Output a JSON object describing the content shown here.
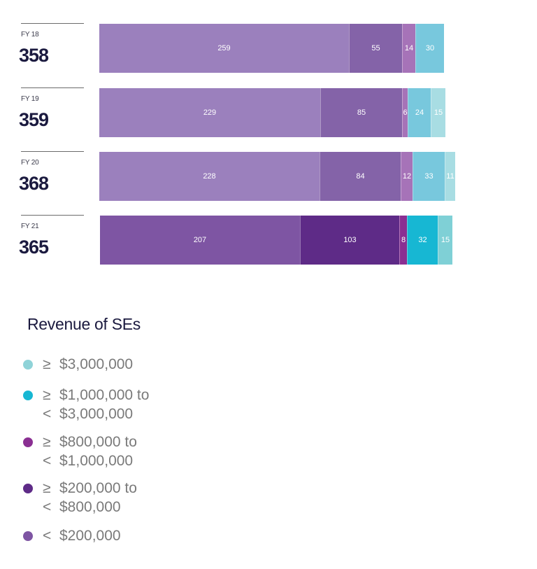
{
  "chart_data": {
    "type": "bar",
    "orientation": "horizontal",
    "stacked": true,
    "categories": [
      "FY 18",
      "FY 19",
      "FY 20",
      "FY 21"
    ],
    "totals": [
      "358",
      "359",
      "368",
      "365"
    ],
    "series": [
      {
        "name": "< $200,000",
        "values": [
          259,
          229,
          228,
          207
        ]
      },
      {
        "name": "≥ $200,000 to < $800,000",
        "values": [
          55,
          85,
          84,
          103
        ]
      },
      {
        "name": "≥ $800,000 to < $1,000,000",
        "values": [
          14,
          6,
          12,
          8
        ]
      },
      {
        "name": "≥ $1,000,000 to < $3,000,000",
        "values": [
          30,
          24,
          33,
          32
        ]
      },
      {
        "name": "≥ $3,000,000",
        "values": [
          null,
          15,
          11,
          15
        ]
      }
    ],
    "colors": [
      [
        "#9b80bd",
        "#8463a8",
        "#a673b8",
        "#78c8dd",
        "#a8dde3"
      ],
      [
        "#9b80bd",
        "#8463a8",
        "#a673b8",
        "#78c8dd",
        "#a8dde3"
      ],
      [
        "#9b80bd",
        "#8463a8",
        "#a673b8",
        "#78c8dd",
        "#a8dde3"
      ],
      [
        "#7e55a3",
        "#5e2b87",
        "#8a2f92",
        "#17b7d3",
        "#7fd0d6"
      ]
    ],
    "legend_title": "Revenue of SEs",
    "legend_position": "bottom-left"
  },
  "legend": {
    "title": "Revenue of SEs",
    "items": [
      {
        "color": "#8fd3d8",
        "lines": [
          {
            "sym": "≥",
            "text": "$3,000,000"
          }
        ]
      },
      {
        "color": "#17b7d3",
        "lines": [
          {
            "sym": "≥",
            "text": "$1,000,000 to"
          },
          {
            "sym": "<",
            "text": "$3,000,000"
          }
        ]
      },
      {
        "color": "#8a2f92",
        "lines": [
          {
            "sym": "≥",
            "text": "$800,000 to"
          },
          {
            "sym": "<",
            "text": "$1,000,000"
          }
        ]
      },
      {
        "color": "#5e2b87",
        "lines": [
          {
            "sym": "≥",
            "text": "$200,000 to"
          },
          {
            "sym": "<",
            "text": "$800,000"
          }
        ]
      },
      {
        "color": "#7e55a3",
        "lines": [
          {
            "sym": "<",
            "text": "$200,000"
          }
        ]
      }
    ]
  }
}
